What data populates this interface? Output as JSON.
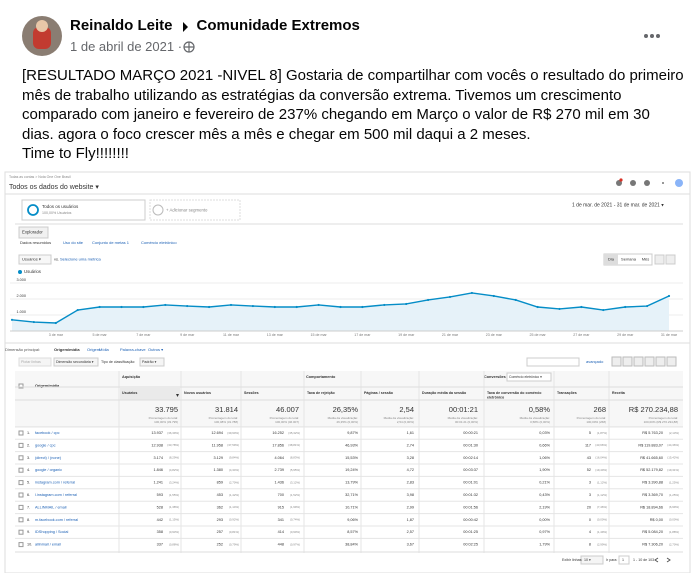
{
  "post": {
    "author": "Reinaldo Leite",
    "group": "Comunidade Extremos",
    "date": "1 de abril de 2021 ·",
    "body": [
      "[RESULTADO MARÇO 2021 -NIVEL 8] Gostaria de compartilhar com vocês o resultado do primeiro",
      "mês de trabalho utilizando as estratégias da conversão extrema. Tivemos um crescimento",
      "comparado com janeiro e fevereiro de 237% chegando em Março o valor de R$ 270 mil em 30",
      "dias. agora o foco crescer mês a mês e chegar em 500 mil daqui a 2 meses.",
      "Time to Fly!!!!!!!!"
    ]
  },
  "screenshot": {
    "breadcrumb": "Todas as contas > Nota One One Brasil",
    "view": "Todos os dados do website ▾",
    "segment": {
      "name": "Todos os usuários",
      "share": "100,00% Usuários"
    },
    "add_segment": "+ Adicionar segmento",
    "date_range": "1 de mar. de 2021 - 31 de mar. de 2021 ▾",
    "tab": "Explorador",
    "subtabs": [
      "Dados resumidos",
      "Uso do site",
      "Conjunto de metas 1",
      "Comércio eletrônico"
    ],
    "metric": "Usuários ▾",
    "vs": "vs.",
    "pick_metric": "Selecione uma métrica",
    "periods": [
      "Dia",
      "Semana",
      "Mês"
    ],
    "chart": {
      "type": "line",
      "series_name": "Usuários",
      "color": "#058dc7",
      "categories": [
        null,
        null,
        "3 de mar",
        null,
        "5 de mar",
        null,
        "7 de mar",
        null,
        "9 de mar",
        null,
        "11 de mar",
        null,
        "13 de mar",
        null,
        "15 de mar",
        null,
        "17 de mar",
        null,
        "19 de mar",
        null,
        "21 de mar",
        null,
        "23 de mar",
        null,
        "25 de mar",
        null,
        "27 de mar",
        null,
        "29 de mar",
        null,
        "31 de mar"
      ],
      "values": [
        700,
        560,
        500,
        1310,
        1500,
        1500,
        1500,
        1630,
        1560,
        1500,
        1630,
        1560,
        1500,
        1500,
        1630,
        1500,
        1500,
        1630,
        1690,
        1940,
        2130,
        2380,
        2190,
        1940,
        1500,
        1380,
        1500,
        1310,
        1500,
        1560,
        2190
      ],
      "ylim": [
        0,
        3000
      ],
      "yticks": [
        {
          "value": 1000,
          "label": "1.000"
        },
        {
          "value": 2000,
          "label": "2.000"
        },
        {
          "value": 3000,
          "label": "3.000"
        }
      ]
    },
    "dimension_label": "Dimensão principal:",
    "dimensions": [
      "Origem/mídia",
      "Origem",
      "Mídia",
      "Palavra-chave",
      "Outros ▾"
    ],
    "plot_rows": "Plotar linhas",
    "secondary": "Dimensão secundária ▾",
    "sort_label": "Tipo de classificação:",
    "sort": "Padrão ▾",
    "advanced": "avançado",
    "table": {
      "groups": [
        "Aquisição",
        "Comportamento",
        "Conversões"
      ],
      "conversion_select": "Comércio eletrônico ▾",
      "first_column": "Origem/mídia",
      "columns": [
        [
          "Usuários"
        ],
        [
          "Novos usuários"
        ],
        [
          "Sessões"
        ],
        [
          "Taxa de rejeição"
        ],
        [
          "Páginas / sessão"
        ],
        [
          "Duração média da sessão"
        ],
        [
          "Taxa de conversão do comércio",
          "eletrônico"
        ],
        [
          "Transações"
        ],
        [
          "Receita"
        ]
      ],
      "totals": [
        {
          "value": "33.795",
          "note": [
            "Porcentagem do total:",
            "100,00% (33.795)"
          ]
        },
        {
          "value": "31.814",
          "note": [
            "Porcentagem do total:",
            "100,08% (31.788)"
          ]
        },
        {
          "value": "46.007",
          "note": [
            "Porcentagem do total:",
            "100,00% (46.007)"
          ]
        },
        {
          "value": "26,35%",
          "note": [
            "Média da visualização:",
            "26,35% (0,00%)"
          ]
        },
        {
          "value": "2,54",
          "note": [
            "Média da visualização:",
            "2,54 (0,00%)"
          ]
        },
        {
          "value": "00:01:21",
          "note": [
            "Média da visualização:",
            "00:01:21 (0,00%)"
          ]
        },
        {
          "value": "0,58%",
          "note": [
            "Média da visualização:",
            "0,58% (0,00%)"
          ]
        },
        {
          "value": "268",
          "note": [
            "Porcentagem do total:",
            "100,00% (268)"
          ]
        },
        {
          "value": "R$ 270.234,88",
          "note": [
            "Porcentagem do total:",
            "100,00% (R$ 270.234,88)"
          ]
        }
      ],
      "rows": [
        {
          "rank": "1.",
          "label": "facebook / cpc",
          "cells": [
            [
              "13.937",
              "(36,39%)"
            ],
            [
              "12.694",
              "(39,90%)"
            ],
            [
              "16.252",
              "(35,32%)"
            ],
            [
              "9,87%"
            ],
            [
              "1,61"
            ],
            [
              "00:00:21"
            ],
            [
              "0,03%"
            ],
            [
              "5",
              "(1,87%)"
            ],
            [
              "R$ 5.763,20",
              "(2,13%)"
            ]
          ]
        },
        {
          "rank": "2.",
          "label": "google / cpc",
          "cells": [
            [
              "12.938",
              "(33,78%)"
            ],
            [
              "11.958",
              "(37,59%)"
            ],
            [
              "17.856",
              "(38,81%)"
            ],
            [
              "46,93%"
            ],
            [
              "2,74"
            ],
            [
              "00:01:30"
            ],
            [
              "0,66%"
            ],
            [
              "117",
              "(43,66%)"
            ],
            [
              "R$ 119.883,07",
              "(44,36%)"
            ]
          ]
        },
        {
          "rank": "3.",
          "label": "(direct) / (none)",
          "cells": [
            [
              "3.174",
              "(8,29%)"
            ],
            [
              "3.129",
              "(9,84%)"
            ],
            [
              "4.064",
              "(8,83%)"
            ],
            [
              "15,53%"
            ],
            [
              "3,28"
            ],
            [
              "00:02:14"
            ],
            [
              "1,06%"
            ],
            [
              "43",
              "(16,04%)"
            ],
            [
              "R$ 41.665,60",
              "(15,42%)"
            ]
          ]
        },
        {
          "rank": "4.",
          "label": "google / organic",
          "cells": [
            [
              "1.846",
              "(4,82%)"
            ],
            [
              "1.380",
              "(4,34%)"
            ],
            [
              "2.739",
              "(5,95%)"
            ],
            [
              "19,24%"
            ],
            [
              "4,72"
            ],
            [
              "00:03:37"
            ],
            [
              "1,90%"
            ],
            [
              "52",
              "(19,40%)"
            ],
            [
              "R$ 52.179,82",
              "(19,31%)"
            ]
          ]
        },
        {
          "rank": "5.",
          "label": "instagram.com / referral",
          "cells": [
            [
              "1.241",
              "(3,24%)"
            ],
            [
              "859",
              "(2,70%)"
            ],
            [
              "1.436",
              "(3,12%)"
            ],
            [
              "13,79%"
            ],
            [
              "2,83"
            ],
            [
              "00:01:01"
            ],
            [
              "0,21%"
            ],
            [
              "3",
              "(1,12%)"
            ],
            [
              "R$ 3.390,88",
              "(1,25%)"
            ]
          ]
        },
        {
          "rank": "6.",
          "label": "l.instagram.com / referral",
          "cells": [
            [
              "593",
              "(1,55%)"
            ],
            [
              "453",
              "(1,42%)"
            ],
            [
              "700",
              "(1,52%)"
            ],
            [
              "32,71%"
            ],
            [
              "3,98"
            ],
            [
              "00:01:32"
            ],
            [
              "0,43%"
            ],
            [
              "3",
              "(1,12%)"
            ],
            [
              "R$ 3.369,70",
              "(1,25%)"
            ]
          ]
        },
        {
          "rank": "7.",
          "label": "ALLINMAIL / email",
          "cells": [
            [
              "528",
              "(1,38%)"
            ],
            [
              "362",
              "(1,14%)"
            ],
            [
              "915",
              "(1,99%)"
            ],
            [
              "10,71%"
            ],
            [
              "2,99"
            ],
            [
              "00:01:56"
            ],
            [
              "2,19%"
            ],
            [
              "20",
              "(7,46%)"
            ],
            [
              "R$ 18.894,66",
              "(6,99%)"
            ]
          ]
        },
        {
          "rank": "8.",
          "label": "m.facebook.com / referral",
          "cells": [
            [
              "442",
              "(1,15%)"
            ],
            [
              "293",
              "(0,92%)"
            ],
            [
              "341",
              "(0,74%)"
            ],
            [
              "9,06%"
            ],
            [
              "1,87"
            ],
            [
              "00:00:42"
            ],
            [
              "0,00%"
            ],
            [
              "0",
              "(0,00%)"
            ],
            [
              "R$ 0,00",
              "(0,00%)"
            ]
          ]
        },
        {
          "rank": "9.",
          "label": "IDShopping / Social",
          "cells": [
            [
              "358",
              "(0,93%)"
            ],
            [
              "257",
              "(0,81%)"
            ],
            [
              "414",
              "(0,90%)"
            ],
            [
              "8,57%"
            ],
            [
              "2,57"
            ],
            [
              "00:01:25"
            ],
            [
              "0,97%"
            ],
            [
              "4",
              "(1,49%)"
            ],
            [
              "R$ 5.084,20",
              "(1,88%)"
            ]
          ]
        },
        {
          "rank": "10.",
          "label": "allinmail / email",
          "cells": [
            [
              "337",
              "(0,88%)"
            ],
            [
              "252",
              "(0,79%)"
            ],
            [
              "448",
              "(0,97%)"
            ],
            [
              "38,84%"
            ],
            [
              "3,67"
            ],
            [
              "00:02:25"
            ],
            [
              "1,79%"
            ],
            [
              "8",
              "(2,99%)"
            ],
            [
              "R$ 7.306,20",
              "(2,70%)"
            ]
          ]
        }
      ]
    },
    "footer": {
      "show_rows": "Exibir linhas:",
      "rows_value": "10 ▾",
      "goto": "Ir para:",
      "goto_value": "1",
      "range": "1 - 10 de 103"
    }
  }
}
